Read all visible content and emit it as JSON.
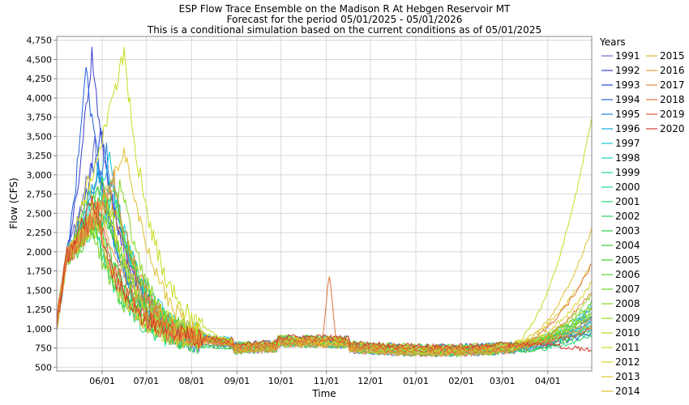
{
  "chart_data": {
    "type": "line",
    "title": "ESP Flow Trace Ensemble on the Madison R At Hebgen Reservoir MT",
    "subtitle": "Forecast for the period 05/01/2025 - 05/01/2026",
    "subtitle2": "This is a conditional simulation based on the current conditions as of 05/01/2025",
    "xlabel": "Time",
    "ylabel": "Flow (CFS)",
    "x_range": [
      "2025-05-01",
      "2026-05-01"
    ],
    "x_ticks": [
      "06/01",
      "07/01",
      "08/01",
      "09/01",
      "10/01",
      "11/01",
      "12/01",
      "01/01",
      "02/01",
      "03/01",
      "04/01"
    ],
    "y_ticks": [
      "500",
      "750",
      "1,000",
      "1,250",
      "1,500",
      "1,750",
      "2,000",
      "2,250",
      "2,500",
      "2,750",
      "3,000",
      "3,250",
      "3,500",
      "3,750",
      "4,000",
      "4,250",
      "4,500",
      "4,750"
    ],
    "ylim": [
      450,
      4800
    ],
    "grid": true,
    "legend_title": "Years",
    "legend_position": "right",
    "series": [
      {
        "name": "1991",
        "color": "#6b6bd6",
        "peak_day": 26,
        "peak": 3400,
        "fall_bump": 0,
        "end": 1100
      },
      {
        "name": "1992",
        "color": "#3c3ccf",
        "peak_day": 24,
        "peak": 4550,
        "fall_bump": 0,
        "end": 950
      },
      {
        "name": "1993",
        "color": "#2848d8",
        "peak_day": 30,
        "peak": 3550,
        "fall_bump": 0,
        "end": 1150
      },
      {
        "name": "1994",
        "color": "#1f62dc",
        "peak_day": 20,
        "peak": 4350,
        "fall_bump": 0,
        "end": 1000
      },
      {
        "name": "1995",
        "color": "#1c84dc",
        "peak_day": 34,
        "peak": 3300,
        "fall_bump": 0,
        "end": 1250
      },
      {
        "name": "1996",
        "color": "#12a6d8",
        "peak_day": 28,
        "peak": 3100,
        "fall_bump": 0,
        "end": 1150
      },
      {
        "name": "1997",
        "color": "#14c6d6",
        "peak_day": 36,
        "peak": 3200,
        "fall_bump": 0,
        "end": 1300
      },
      {
        "name": "1998",
        "color": "#18d2c0",
        "peak_day": 40,
        "peak": 2700,
        "fall_bump": 0,
        "end": 1050
      },
      {
        "name": "1999",
        "color": "#1ad6a8",
        "peak_day": 38,
        "peak": 2950,
        "fall_bump": 0,
        "end": 1100
      },
      {
        "name": "2000",
        "color": "#1fd890",
        "peak_day": 22,
        "peak": 2650,
        "fall_bump": 0,
        "end": 950
      },
      {
        "name": "2001",
        "color": "#23d87a",
        "peak_day": 25,
        "peak": 2450,
        "fall_bump": 0,
        "end": 900
      },
      {
        "name": "2002",
        "color": "#2ad464",
        "peak_day": 32,
        "peak": 2800,
        "fall_bump": 0,
        "end": 1200
      },
      {
        "name": "2003",
        "color": "#30d04e",
        "peak_day": 27,
        "peak": 2600,
        "fall_bump": 0,
        "end": 1050
      },
      {
        "name": "2004",
        "color": "#36cc3c",
        "peak_day": 29,
        "peak": 2500,
        "fall_bump": 0,
        "end": 1000
      },
      {
        "name": "2005",
        "color": "#44d030",
        "peak_day": 42,
        "peak": 2550,
        "fall_bump": 0,
        "end": 1350
      },
      {
        "name": "2006",
        "color": "#58d22a",
        "peak_day": 31,
        "peak": 2900,
        "fall_bump": 0,
        "end": 1250
      },
      {
        "name": "2007",
        "color": "#6fd426",
        "peak_day": 23,
        "peak": 2400,
        "fall_bump": 0,
        "end": 1150
      },
      {
        "name": "2008",
        "color": "#86d622",
        "peak_day": 44,
        "peak": 2850,
        "fall_bump": 0,
        "end": 1450
      },
      {
        "name": "2009",
        "color": "#9cd820",
        "peak_day": 35,
        "peak": 2700,
        "fall_bump": 0,
        "end": 1200
      },
      {
        "name": "2010",
        "color": "#b2da20",
        "peak_day": 41,
        "peak": 2600,
        "fall_bump": 0,
        "end": 1300
      },
      {
        "name": "2011",
        "color": "#c8dc22",
        "peak_day": 46,
        "peak": 4600,
        "fall_bump": 0,
        "end": 3750
      },
      {
        "name": "2012",
        "color": "#d8d424",
        "peak_day": 21,
        "peak": 3000,
        "fall_bump": 0,
        "end": 1600
      },
      {
        "name": "2013",
        "color": "#dccb2a",
        "peak_day": 33,
        "peak": 2750,
        "fall_bump": 0,
        "end": 1850
      },
      {
        "name": "2014",
        "color": "#e0c030",
        "peak_day": 48,
        "peak": 3300,
        "fall_bump": 0,
        "end": 2300
      },
      {
        "name": "2015",
        "color": "#e2b238",
        "peak_day": 26,
        "peak": 2550,
        "fall_bump": 0,
        "end": 1150
      },
      {
        "name": "2016",
        "color": "#e4a040",
        "peak_day": 30,
        "peak": 2650,
        "fall_bump": 0,
        "end": 1050
      },
      {
        "name": "2017",
        "color": "#e48a40",
        "peak_day": 39,
        "peak": 2950,
        "fall_bump": 0,
        "end": 1500
      },
      {
        "name": "2018",
        "color": "#e2743c",
        "peak_day": 37,
        "peak": 2700,
        "fall_bump": 1700,
        "end": 1850
      },
      {
        "name": "2019",
        "color": "#de5a36",
        "peak_day": 28,
        "peak": 2600,
        "fall_bump": 0,
        "end": 1000
      },
      {
        "name": "2020",
        "color": "#d63c28",
        "peak_day": 24,
        "peak": 2650,
        "fall_bump": 0,
        "end": 720
      }
    ]
  }
}
